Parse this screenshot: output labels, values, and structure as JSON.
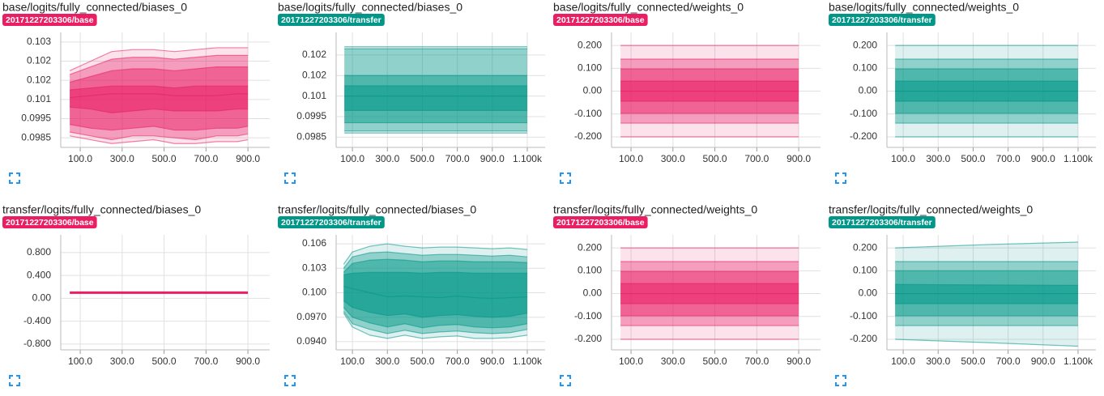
{
  "chart_data": [
    {
      "type": "distribution",
      "title": "base/logits/fully_connected/biases_0",
      "run": "20171227203306/base",
      "color": "#e91e63",
      "x": [
        50,
        150,
        250,
        350,
        450,
        550,
        650,
        750,
        850,
        900
      ],
      "series": [
        {
          "values": [
            0.102,
            0.1025,
            0.103,
            0.1031,
            0.1031,
            0.103,
            0.1031,
            0.1032,
            0.1032,
            0.1032
          ]
        },
        {
          "values": [
            0.1018,
            0.1022,
            0.1026,
            0.1027,
            0.1027,
            0.1026,
            0.1027,
            0.1028,
            0.1028,
            0.1028
          ]
        },
        {
          "values": [
            0.1014,
            0.1017,
            0.102,
            0.1021,
            0.1021,
            0.102,
            0.1021,
            0.1022,
            0.1022,
            0.1022
          ]
        },
        {
          "values": [
            0.101,
            0.1011,
            0.1012,
            0.1012,
            0.1012,
            0.1011,
            0.1012,
            0.1012,
            0.1012,
            0.1012
          ]
        },
        {
          "values": [
            0.1006,
            0.1007,
            0.1008,
            0.1008,
            0.1008,
            0.1007,
            0.1007,
            0.1007,
            0.1008,
            0.1008
          ]
        },
        {
          "values": [
            0.1001,
            0.1,
            0.0998,
            0.0999,
            0.1,
            0.0999,
            0.0999,
            0.0999,
            0.1,
            0.1
          ]
        },
        {
          "values": [
            0.0992,
            0.099,
            0.0989,
            0.099,
            0.0991,
            0.0989,
            0.0989,
            0.099,
            0.099,
            0.0991
          ]
        },
        {
          "values": [
            0.0988,
            0.0986,
            0.0984,
            0.0986,
            0.0986,
            0.0985,
            0.0984,
            0.0986,
            0.0986,
            0.0987
          ]
        },
        {
          "values": [
            0.0986,
            0.0984,
            0.0982,
            0.0983,
            0.0984,
            0.0982,
            0.0982,
            0.0983,
            0.0983,
            0.0984
          ]
        }
      ],
      "xlim": [
        7,
        1004
      ],
      "xticks": [
        {
          "value": 100,
          "label": "100.0"
        },
        {
          "value": 300,
          "label": "300.0"
        },
        {
          "value": 500,
          "label": "500.0"
        },
        {
          "value": 700,
          "label": "700.0"
        },
        {
          "value": 900,
          "label": "900.0"
        }
      ],
      "ylim": [
        0.098,
        0.104
      ],
      "yticks": [
        {
          "value": 0.0985,
          "label": "0.0985"
        },
        {
          "value": 0.0995,
          "label": "0.0995"
        },
        {
          "value": 0.1005,
          "label": "0.101"
        },
        {
          "value": 0.1015,
          "label": "0.102"
        },
        {
          "value": 0.1025,
          "label": "0.102"
        },
        {
          "value": 0.1035,
          "label": "0.103"
        }
      ],
      "grid": true
    },
    {
      "type": "distribution",
      "title": "base/logits/fully_connected/biases_0",
      "run": "20171227203306/transfer",
      "color": "#009688",
      "x": [
        54,
        1100
      ],
      "series": [
        {
          "values": [
            0.1029,
            0.1029
          ]
        },
        {
          "values": [
            0.1028,
            0.1028
          ]
        },
        {
          "values": [
            0.1015,
            0.1015
          ]
        },
        {
          "values": [
            0.101,
            0.101
          ]
        },
        {
          "values": [
            0.1005,
            0.1005
          ]
        },
        {
          "values": [
            0.0998,
            0.0998
          ]
        },
        {
          "values": [
            0.0992,
            0.0992
          ]
        },
        {
          "values": [
            0.0988,
            0.0988
          ]
        },
        {
          "values": [
            0.0987,
            0.0987
          ]
        }
      ],
      "xlim": [
        7,
        1202
      ],
      "xticks": [
        {
          "value": 100,
          "label": "100.0"
        },
        {
          "value": 300,
          "label": "300.0"
        },
        {
          "value": 500,
          "label": "500.0"
        },
        {
          "value": 700,
          "label": "700.0"
        },
        {
          "value": 900,
          "label": "900.0"
        },
        {
          "value": 1100,
          "label": "1.100k"
        }
      ],
      "ylim": [
        0.098,
        0.1036
      ],
      "yticks": [
        {
          "value": 0.0985,
          "label": "0.0985"
        },
        {
          "value": 0.0995,
          "label": "0.0995"
        },
        {
          "value": 0.1005,
          "label": "0.101"
        },
        {
          "value": 0.1015,
          "label": "0.102"
        },
        {
          "value": 0.1025,
          "label": "0.102"
        }
      ],
      "grid": true
    },
    {
      "type": "distribution",
      "title": "base/logits/fully_connected/weights_0",
      "run": "20171227203306/base",
      "color": "#e91e63",
      "x": [
        50,
        900
      ],
      "series": [
        {
          "values": [
            0.2,
            0.2
          ]
        },
        {
          "values": [
            0.14,
            0.14
          ]
        },
        {
          "values": [
            0.097,
            0.097
          ]
        },
        {
          "values": [
            0.044,
            0.044
          ]
        },
        {
          "values": [
            0,
            0
          ]
        },
        {
          "values": [
            -0.044,
            -0.044
          ]
        },
        {
          "values": [
            -0.097,
            -0.097
          ]
        },
        {
          "values": [
            -0.14,
            -0.14
          ]
        },
        {
          "values": [
            -0.2,
            -0.2
          ]
        }
      ],
      "xlim": [
        7,
        1004
      ],
      "xticks": [
        {
          "value": 100,
          "label": "100.0"
        },
        {
          "value": 300,
          "label": "300.0"
        },
        {
          "value": 500,
          "label": "500.0"
        },
        {
          "value": 700,
          "label": "700.0"
        },
        {
          "value": 900,
          "label": "900.0"
        }
      ],
      "ylim": [
        -0.246,
        0.257
      ],
      "yticks": [
        {
          "value": -0.2,
          "label": "-0.200"
        },
        {
          "value": -0.1,
          "label": "-0.100"
        },
        {
          "value": 0,
          "label": "0.00"
        },
        {
          "value": 0.1,
          "label": "0.100"
        },
        {
          "value": 0.2,
          "label": "0.200"
        }
      ],
      "grid": true
    },
    {
      "type": "distribution",
      "title": "base/logits/fully_connected/weights_0",
      "run": "20171227203306/transfer",
      "color": "#009688",
      "x": [
        54,
        1100
      ],
      "series": [
        {
          "values": [
            0.2,
            0.2
          ]
        },
        {
          "values": [
            0.14,
            0.14
          ]
        },
        {
          "values": [
            0.097,
            0.097
          ]
        },
        {
          "values": [
            0.044,
            0.044
          ]
        },
        {
          "values": [
            0,
            0
          ]
        },
        {
          "values": [
            -0.044,
            -0.044
          ]
        },
        {
          "values": [
            -0.097,
            -0.097
          ]
        },
        {
          "values": [
            -0.14,
            -0.14
          ]
        },
        {
          "values": [
            -0.2,
            -0.2
          ]
        }
      ],
      "xlim": [
        7,
        1202
      ],
      "xticks": [
        {
          "value": 100,
          "label": "100.0"
        },
        {
          "value": 300,
          "label": "300.0"
        },
        {
          "value": 500,
          "label": "500.0"
        },
        {
          "value": 700,
          "label": "700.0"
        },
        {
          "value": 900,
          "label": "900.0"
        },
        {
          "value": 1100,
          "label": "1.100k"
        }
      ],
      "ylim": [
        -0.246,
        0.257
      ],
      "yticks": [
        {
          "value": -0.2,
          "label": "-0.200"
        },
        {
          "value": -0.1,
          "label": "-0.100"
        },
        {
          "value": 0,
          "label": "0.00"
        },
        {
          "value": 0.1,
          "label": "0.100"
        },
        {
          "value": 0.2,
          "label": "0.200"
        }
      ],
      "grid": true
    },
    {
      "type": "distribution",
      "title": "transfer/logits/fully_connected/biases_0",
      "run": "20171227203306/base",
      "color": "#e91e63",
      "x": [
        50,
        900
      ],
      "series": [
        {
          "values": [
            0.1,
            0.1
          ]
        }
      ],
      "xlim": [
        7,
        1004
      ],
      "xticks": [
        {
          "value": 100,
          "label": "100.0"
        },
        {
          "value": 300,
          "label": "300.0"
        },
        {
          "value": 500,
          "label": "500.0"
        },
        {
          "value": 700,
          "label": "700.0"
        },
        {
          "value": 900,
          "label": "900.0"
        }
      ],
      "ylim": [
        -0.9,
        1.11
      ],
      "yticks": [
        {
          "value": -0.8,
          "label": "-0.800"
        },
        {
          "value": -0.4,
          "label": "-0.400"
        },
        {
          "value": 0,
          "label": "0.00"
        },
        {
          "value": 0.4,
          "label": "0.400"
        },
        {
          "value": 0.8,
          "label": "0.800"
        }
      ],
      "grid": true
    },
    {
      "type": "distribution",
      "title": "transfer/logits/fully_connected/biases_0",
      "run": "20171227203306/transfer",
      "color": "#009688",
      "x": [
        50,
        100,
        200,
        300,
        400,
        500,
        600,
        700,
        800,
        900,
        1000,
        1100
      ],
      "series": [
        {
          "values": [
            0.1035,
            0.105,
            0.1057,
            0.106,
            0.1057,
            0.1055,
            0.1056,
            0.1056,
            0.1055,
            0.1054,
            0.1055,
            0.1053
          ]
        },
        {
          "values": [
            0.103,
            0.1044,
            0.1049,
            0.105,
            0.1048,
            0.1046,
            0.1047,
            0.1047,
            0.1046,
            0.1045,
            0.1046,
            0.1044
          ]
        },
        {
          "values": [
            0.1025,
            0.1036,
            0.104,
            0.1041,
            0.104,
            0.1038,
            0.1039,
            0.1039,
            0.1038,
            0.1038,
            0.1038,
            0.1037
          ]
        },
        {
          "values": [
            0.1022,
            0.1024,
            0.1025,
            0.1025,
            0.1025,
            0.1024,
            0.1025,
            0.1025,
            0.1024,
            0.1024,
            0.1024,
            0.1024
          ]
        },
        {
          "values": [
            0.1008,
            0.1005,
            0.1,
            0.0995,
            0.0996,
            0.0995,
            0.0994,
            0.0996,
            0.0994,
            0.0993,
            0.0994,
            0.0995
          ]
        },
        {
          "values": [
            0.099,
            0.0982,
            0.0976,
            0.0972,
            0.0974,
            0.097,
            0.0972,
            0.0973,
            0.0971,
            0.097,
            0.0971,
            0.0975
          ]
        },
        {
          "values": [
            0.0982,
            0.097,
            0.0963,
            0.0958,
            0.0962,
            0.0957,
            0.096,
            0.0961,
            0.0958,
            0.0957,
            0.0958,
            0.0962
          ]
        },
        {
          "values": [
            0.0977,
            0.0962,
            0.0955,
            0.095,
            0.0954,
            0.095,
            0.0952,
            0.0953,
            0.0951,
            0.095,
            0.0951,
            0.0955
          ]
        },
        {
          "values": [
            0.0975,
            0.0958,
            0.0948,
            0.0944,
            0.0948,
            0.0944,
            0.0946,
            0.0947,
            0.0944,
            0.0944,
            0.0945,
            0.0948
          ]
        }
      ],
      "xlim": [
        7,
        1202
      ],
      "xticks": [
        {
          "value": 100,
          "label": "100.0"
        },
        {
          "value": 300,
          "label": "300.0"
        },
        {
          "value": 500,
          "label": "500.0"
        },
        {
          "value": 700,
          "label": "700.0"
        },
        {
          "value": 900,
          "label": "900.0"
        },
        {
          "value": 1100,
          "label": "1.100k"
        }
      ],
      "ylim": [
        0.093,
        0.1071
      ],
      "yticks": [
        {
          "value": 0.094,
          "label": "0.0940"
        },
        {
          "value": 0.097,
          "label": "0.0970"
        },
        {
          "value": 0.1,
          "label": "0.100"
        },
        0.103,
        0.106
      ],
      "grid": true
    },
    {
      "type": "distribution",
      "title": "transfer/logits/fully_connected/weights_0",
      "run": "20171227203306/base",
      "color": "#e91e63",
      "x": [
        50,
        900
      ],
      "series": [
        {
          "values": [
            0.2,
            0.2
          ]
        },
        {
          "values": [
            0.14,
            0.14
          ]
        },
        {
          "values": [
            0.097,
            0.097
          ]
        },
        {
          "values": [
            0.044,
            0.044
          ]
        },
        {
          "values": [
            0,
            0
          ]
        },
        {
          "values": [
            -0.044,
            -0.044
          ]
        },
        {
          "values": [
            -0.097,
            -0.097
          ]
        },
        {
          "values": [
            -0.14,
            -0.14
          ]
        },
        {
          "values": [
            -0.2,
            -0.2
          ]
        }
      ],
      "xlim": [
        7,
        1004
      ],
      "xticks": [
        {
          "value": 100,
          "label": "100.0"
        },
        {
          "value": 300,
          "label": "300.0"
        },
        {
          "value": 500,
          "label": "500.0"
        },
        {
          "value": 700,
          "label": "700.0"
        },
        {
          "value": 900,
          "label": "900.0"
        }
      ],
      "ylim": [
        -0.246,
        0.257
      ],
      "yticks": [
        {
          "value": -0.2,
          "label": "-0.200"
        },
        {
          "value": -0.1,
          "label": "-0.100"
        },
        {
          "value": 0,
          "label": "0.00"
        },
        {
          "value": 0.1,
          "label": "0.100"
        },
        {
          "value": 0.2,
          "label": "0.200"
        }
      ],
      "grid": true
    },
    {
      "type": "distribution",
      "title": "transfer/logits/fully_connected/weights_0",
      "run": "20171227203306/transfer",
      "color": "#009688",
      "x": [
        54,
        600,
        1100
      ],
      "series": [
        {
          "values": [
            0.2,
            0.215,
            0.225
          ]
        },
        {
          "values": [
            0.14,
            0.14,
            0.14
          ]
        },
        {
          "values": [
            0.1,
            0.1,
            0.1
          ]
        },
        {
          "values": [
            0.04,
            0.038,
            0.036
          ]
        },
        {
          "values": [
            0,
            0,
            0
          ]
        },
        {
          "values": [
            -0.044,
            -0.044,
            -0.044
          ]
        },
        {
          "values": [
            -0.097,
            -0.097,
            -0.097
          ]
        },
        {
          "values": [
            -0.14,
            -0.14,
            -0.14
          ]
        },
        {
          "values": [
            -0.2,
            -0.215,
            -0.23
          ]
        }
      ],
      "xlim": [
        7,
        1202
      ],
      "xticks": [
        {
          "value": 100,
          "label": "100.0"
        },
        {
          "value": 300,
          "label": "300.0"
        },
        {
          "value": 500,
          "label": "500.0"
        },
        {
          "value": 700,
          "label": "700.0"
        },
        {
          "value": 900,
          "label": "900.0"
        },
        {
          "value": 1100,
          "label": "1.100k"
        }
      ],
      "ylim": [
        -0.246,
        0.257
      ],
      "yticks": [
        {
          "value": -0.2,
          "label": "-0.200"
        },
        {
          "value": -0.1,
          "label": "-0.100"
        },
        {
          "value": 0,
          "label": "0.00"
        },
        {
          "value": 0.1,
          "label": "0.100"
        },
        {
          "value": 0.2,
          "label": "0.200"
        }
      ],
      "grid": true
    }
  ]
}
